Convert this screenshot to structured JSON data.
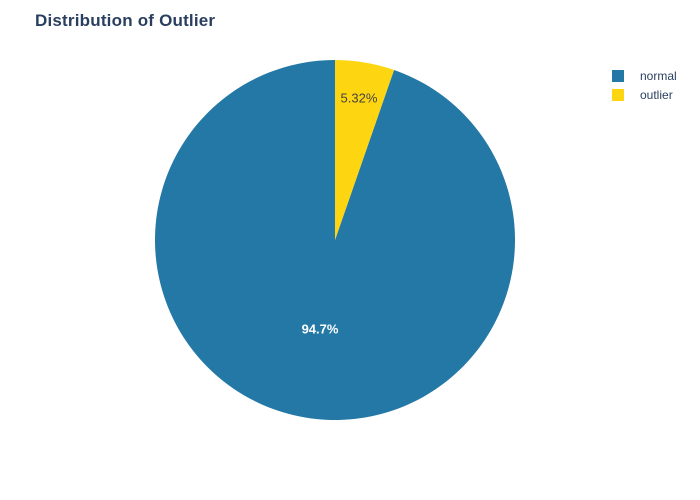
{
  "chart_data": {
    "type": "pie",
    "title": "Distribution of Outlier",
    "categories": [
      "normal",
      "outlier"
    ],
    "values": [
      94.68,
      5.32
    ],
    "slice_labels": [
      "94.7%",
      "5.32%"
    ],
    "colors": [
      "#2378a6",
      "#fed511"
    ],
    "label_colors": [
      "#ffffff",
      "#444444"
    ],
    "legend_position": "top-right",
    "direction": "counterclockwise",
    "start": "top"
  }
}
